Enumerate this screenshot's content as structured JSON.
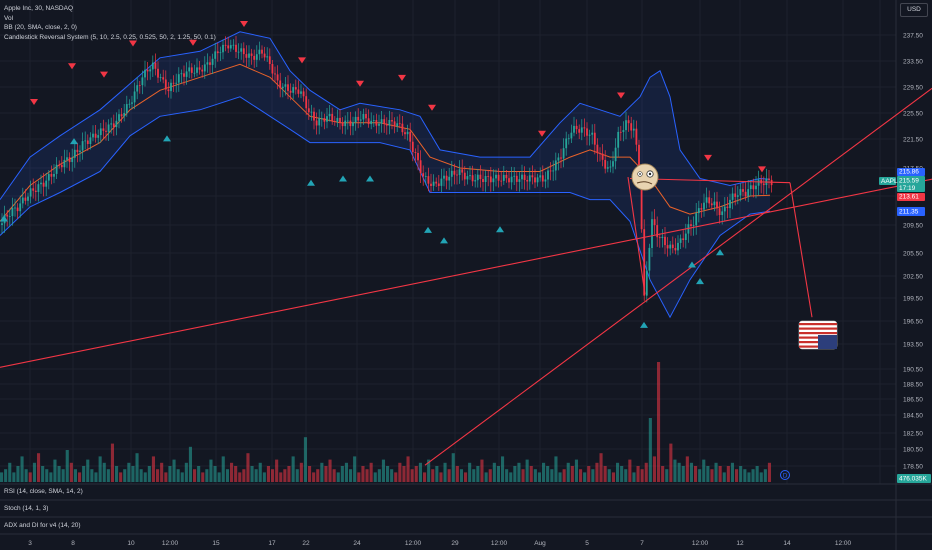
{
  "legend": {
    "symbol": "Apple Inc, 30, NASDAQ",
    "vol": "Vol",
    "bb": "BB (20, SMA, close, 2, 0)",
    "crs": "Candlestick Reversal System (5, 10, 2.5, 0.25, 0.525, 50, 2, 1.25, 50, 0.1)"
  },
  "currency_button": "USD",
  "panes": {
    "rsi": "RSI (14, close, SMA, 14, 2)",
    "stoch": "Stoch (14, 1, 3)",
    "adx": "ADX and DI for v4 (14, 20)"
  },
  "price_tags": {
    "aapl_label": "AAPL",
    "current": "215.59",
    "bb_upper": "215.86",
    "time_left": "17:19",
    "bb_basis": "213.61",
    "bb_lower": "211.35",
    "volume": "476.035K",
    "colors": {
      "current": "#26a69a",
      "upper": "#2962ff",
      "basis": "#f23645",
      "lower": "#2962ff",
      "volume": "#26a69a"
    }
  },
  "chart_data": {
    "type": "candlestick",
    "y_axis": {
      "range": [
        177,
        239
      ],
      "ticks": [
        "237.50",
        "233.50",
        "229.50",
        "225.50",
        "221.50",
        "217.50",
        "213.50",
        "209.50",
        "205.50",
        "202.50",
        "199.50",
        "196.50",
        "193.50",
        "190.50",
        "188.50",
        "186.50",
        "184.50",
        "182.50",
        "180.50",
        "178.50"
      ]
    },
    "x_axis": {
      "ticks": [
        "3",
        "8",
        "10",
        "12:00",
        "15",
        "17",
        "22",
        "24",
        "12:00",
        "29",
        "12:00",
        "Aug",
        "5",
        "7",
        "12:00",
        "12",
        "14",
        "12:00"
      ]
    },
    "price_path": [
      [
        0,
        209.5
      ],
      [
        8,
        211
      ],
      [
        18,
        212
      ],
      [
        30,
        214
      ],
      [
        45,
        215.5
      ],
      [
        60,
        218
      ],
      [
        72,
        219
      ],
      [
        84,
        221
      ],
      [
        100,
        222.5
      ],
      [
        115,
        224
      ],
      [
        130,
        227
      ],
      [
        142,
        231
      ],
      [
        152,
        233
      ],
      [
        160,
        231
      ],
      [
        168,
        229
      ],
      [
        178,
        231
      ],
      [
        188,
        232
      ],
      [
        198,
        232
      ],
      [
        208,
        233
      ],
      [
        218,
        235
      ],
      [
        228,
        236
      ],
      [
        240,
        235
      ],
      [
        252,
        234
      ],
      [
        262,
        235
      ],
      [
        270,
        233
      ],
      [
        278,
        230
      ],
      [
        290,
        229
      ],
      [
        300,
        229
      ],
      [
        308,
        226
      ],
      [
        316,
        224
      ],
      [
        328,
        225
      ],
      [
        340,
        224
      ],
      [
        352,
        224
      ],
      [
        362,
        225
      ],
      [
        372,
        224
      ],
      [
        384,
        224
      ],
      [
        396,
        224
      ],
      [
        408,
        222
      ],
      [
        416,
        219
      ],
      [
        424,
        216
      ],
      [
        434,
        215
      ],
      [
        444,
        216
      ],
      [
        458,
        217
      ],
      [
        470,
        216
      ],
      [
        486,
        216
      ],
      [
        500,
        216
      ],
      [
        514,
        216
      ],
      [
        530,
        216
      ],
      [
        545,
        216
      ],
      [
        560,
        219
      ],
      [
        572,
        223
      ],
      [
        582,
        223
      ],
      [
        592,
        222
      ],
      [
        600,
        219
      ],
      [
        610,
        217
      ],
      [
        618,
        222
      ],
      [
        626,
        224
      ],
      [
        634,
        223
      ],
      [
        640,
        216
      ],
      [
        644,
        199
      ],
      [
        648,
        205
      ],
      [
        652,
        210
      ],
      [
        658,
        208
      ],
      [
        664,
        207
      ],
      [
        672,
        206
      ],
      [
        680,
        207
      ],
      [
        688,
        209
      ],
      [
        694,
        210
      ],
      [
        700,
        212
      ],
      [
        708,
        213
      ],
      [
        716,
        212
      ],
      [
        722,
        211
      ],
      [
        730,
        213
      ],
      [
        738,
        214
      ],
      [
        746,
        214
      ],
      [
        754,
        215
      ],
      [
        762,
        215.5
      ],
      [
        770,
        215.6
      ]
    ],
    "bb": {
      "upper": [
        [
          0,
          213
        ],
        [
          30,
          219
        ],
        [
          60,
          222
        ],
        [
          100,
          226
        ],
        [
          130,
          230
        ],
        [
          160,
          234
        ],
        [
          200,
          235
        ],
        [
          240,
          238
        ],
        [
          270,
          237
        ],
        [
          290,
          232
        ],
        [
          310,
          229
        ],
        [
          340,
          226
        ],
        [
          360,
          227
        ],
        [
          400,
          226
        ],
        [
          420,
          225
        ],
        [
          440,
          220
        ],
        [
          480,
          219
        ],
        [
          530,
          219
        ],
        [
          560,
          224
        ],
        [
          580,
          227
        ],
        [
          600,
          226
        ],
        [
          620,
          225
        ],
        [
          640,
          228
        ],
        [
          650,
          231
        ],
        [
          660,
          232
        ],
        [
          670,
          228
        ],
        [
          680,
          220
        ],
        [
          700,
          216
        ],
        [
          730,
          215
        ],
        [
          760,
          216
        ],
        [
          770,
          215.9
        ]
      ],
      "basis": [
        [
          0,
          210
        ],
        [
          30,
          215
        ],
        [
          60,
          218
        ],
        [
          100,
          221
        ],
        [
          130,
          226
        ],
        [
          160,
          229
        ],
        [
          200,
          231
        ],
        [
          240,
          233
        ],
        [
          270,
          231
        ],
        [
          290,
          228
        ],
        [
          310,
          225
        ],
        [
          340,
          224
        ],
        [
          380,
          224
        ],
        [
          410,
          223
        ],
        [
          430,
          219
        ],
        [
          460,
          217.5
        ],
        [
          500,
          217
        ],
        [
          540,
          217
        ],
        [
          570,
          219
        ],
        [
          590,
          220
        ],
        [
          610,
          219
        ],
        [
          630,
          219
        ],
        [
          650,
          216
        ],
        [
          670,
          212
        ],
        [
          690,
          211
        ],
        [
          720,
          212
        ],
        [
          750,
          213.5
        ],
        [
          770,
          213.6
        ]
      ],
      "lower": [
        [
          0,
          208
        ],
        [
          30,
          212
        ],
        [
          60,
          214
        ],
        [
          100,
          217
        ],
        [
          130,
          222
        ],
        [
          160,
          225
        ],
        [
          200,
          226
        ],
        [
          240,
          228
        ],
        [
          270,
          225
        ],
        [
          290,
          223
        ],
        [
          310,
          221
        ],
        [
          340,
          221
        ],
        [
          380,
          221
        ],
        [
          410,
          220
        ],
        [
          430,
          214
        ],
        [
          460,
          214
        ],
        [
          500,
          214
        ],
        [
          540,
          214
        ],
        [
          570,
          214
        ],
        [
          590,
          213
        ],
        [
          610,
          213
        ],
        [
          630,
          210
        ],
        [
          650,
          202
        ],
        [
          670,
          197
        ],
        [
          690,
          202
        ],
        [
          720,
          208
        ],
        [
          750,
          211
        ],
        [
          770,
          211.4
        ]
      ]
    },
    "signals": {
      "sell": [
        [
          34,
          227.2
        ],
        [
          72,
          232.7
        ],
        [
          104,
          231.4
        ],
        [
          133,
          236.2
        ],
        [
          193,
          236.3
        ],
        [
          244,
          239.2
        ],
        [
          302,
          233.6
        ],
        [
          360,
          230.0
        ],
        [
          402,
          230.9
        ],
        [
          432,
          226.3
        ],
        [
          542,
          222.3
        ],
        [
          621,
          228.2
        ],
        [
          708,
          218.9
        ],
        [
          762,
          217.3
        ]
      ],
      "buy": [
        [
          4,
          210.4
        ],
        [
          74,
          221.2
        ],
        [
          167,
          221.6
        ],
        [
          311,
          215.4
        ],
        [
          343,
          216.0
        ],
        [
          370,
          216.0
        ],
        [
          428,
          208.8
        ],
        [
          444,
          207.3
        ],
        [
          500,
          208.9
        ],
        [
          644,
          196.0
        ],
        [
          692,
          204.0
        ],
        [
          700,
          201.8
        ],
        [
          720,
          205.6
        ]
      ]
    },
    "trendlines": [
      {
        "from": [
          0,
          190.7
        ],
        "to": [
          932,
          215.9
        ]
      },
      {
        "from": [
          425,
          178.6
        ],
        "to": [
          932,
          229.3
        ]
      },
      {
        "from": [
          630,
          216.0
        ],
        "to": [
          790,
          215.4
        ]
      },
      {
        "from": [
          790,
          215.4
        ],
        "to": [
          812,
          197.0
        ]
      },
      {
        "from": [
          628,
          216.2
        ],
        "to": [
          645,
          200.0
        ]
      }
    ],
    "volume_levels": [
      3,
      4,
      6,
      3,
      5,
      8,
      4,
      3,
      6,
      9,
      5,
      4,
      3,
      7,
      5,
      4,
      10,
      6,
      4,
      3,
      5,
      7,
      4,
      3,
      8,
      6,
      4,
      12,
      5,
      3,
      4,
      6,
      5,
      9,
      4,
      3,
      5,
      8,
      4,
      6,
      3,
      5,
      7,
      4,
      3,
      6,
      11,
      4,
      5,
      3,
      4,
      7,
      5,
      3,
      8,
      4,
      6,
      5,
      3,
      4,
      9,
      5,
      4,
      6,
      3,
      5,
      4,
      7,
      3,
      4,
      5,
      8,
      4,
      6,
      14,
      5,
      3,
      4,
      6,
      5,
      7,
      4,
      3,
      5,
      6,
      4,
      8,
      3,
      5,
      4,
      6,
      3,
      4,
      7,
      5,
      4,
      3,
      6,
      5,
      8,
      4,
      5,
      6,
      3,
      7,
      4,
      5,
      3,
      6,
      4,
      9,
      5,
      4,
      3,
      6,
      4,
      5,
      7,
      3,
      4,
      6,
      5,
      8,
      4,
      3,
      5,
      6,
      4,
      7,
      5,
      4,
      3,
      6,
      5,
      4,
      8,
      3,
      4,
      6,
      5,
      7,
      4,
      3,
      5,
      4,
      6,
      9,
      5,
      4,
      3,
      6,
      5,
      4,
      7,
      3,
      5,
      4,
      6,
      20,
      8,
      6,
      5,
      4,
      12,
      7,
      6,
      5,
      8,
      6,
      5,
      4,
      7,
      5,
      4,
      6,
      5,
      3,
      5,
      6,
      4,
      5,
      4,
      3,
      4,
      5,
      3,
      4,
      6
    ]
  }
}
